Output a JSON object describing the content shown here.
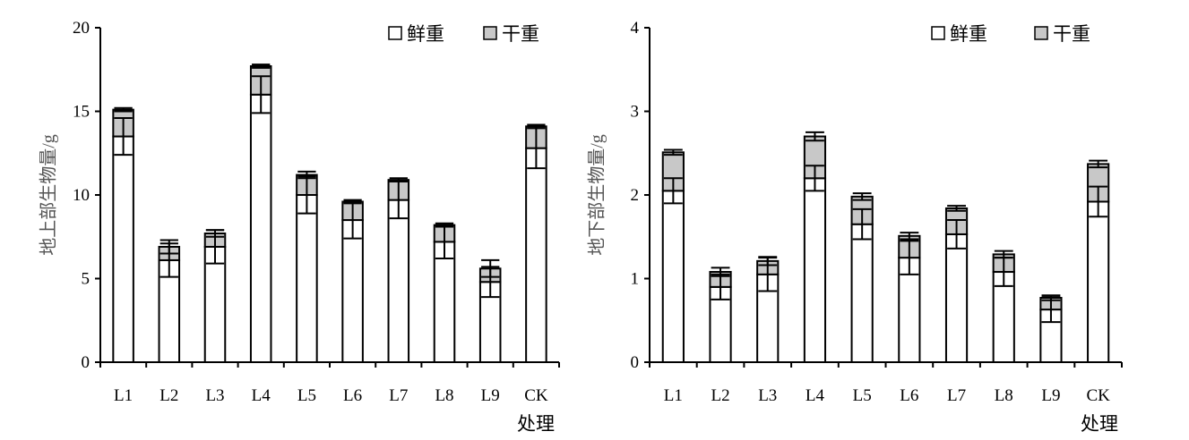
{
  "colors": {
    "fresh": "#ffffff",
    "dry": "#c8c8c8",
    "stroke": "#000000"
  },
  "chart_data": [
    {
      "type": "bar",
      "stacked": true,
      "ylabel": "地上部生物量/g",
      "xlabel": "处理",
      "ylim": [
        0,
        20
      ],
      "yticks": [
        "0",
        "5",
        "10",
        "15",
        "20"
      ],
      "categories": [
        "L1",
        "L2",
        "L3",
        "L4",
        "L5",
        "L6",
        "L7",
        "L8",
        "L9",
        "CK"
      ],
      "legend_position": "top-right",
      "series": [
        {
          "name": "鲜重",
          "values": [
            13.5,
            6.1,
            6.9,
            16.0,
            10.0,
            8.5,
            9.7,
            7.2,
            4.8,
            12.8
          ],
          "error": [
            1.1,
            1.0,
            1.0,
            1.1,
            1.1,
            1.1,
            1.1,
            1.0,
            0.9,
            1.2
          ]
        },
        {
          "name": "干重",
          "values": [
            1.6,
            0.8,
            0.8,
            1.7,
            1.2,
            1.1,
            1.2,
            1.0,
            0.8,
            1.3
          ],
          "error": [
            0.1,
            0.4,
            0.2,
            0.1,
            0.2,
            0.1,
            0.1,
            0.1,
            0.5,
            0.1
          ]
        }
      ]
    },
    {
      "type": "bar",
      "stacked": true,
      "ylabel": "地下部生物量/g",
      "xlabel": "处理",
      "ylim": [
        0,
        4
      ],
      "yticks": [
        "0",
        "1",
        "2",
        "3",
        "4"
      ],
      "categories": [
        "L1",
        "L2",
        "L3",
        "L4",
        "L5",
        "L6",
        "L7",
        "L8",
        "L9",
        "CK"
      ],
      "legend_position": "top-right",
      "series": [
        {
          "name": "鲜重",
          "values": [
            2.05,
            0.9,
            1.05,
            2.2,
            1.65,
            1.25,
            1.53,
            1.08,
            0.63,
            1.92
          ],
          "error": [
            0.15,
            0.15,
            0.2,
            0.15,
            0.18,
            0.2,
            0.17,
            0.17,
            0.15,
            0.18
          ]
        },
        {
          "name": "干重",
          "values": [
            0.46,
            0.18,
            0.16,
            0.5,
            0.33,
            0.26,
            0.31,
            0.21,
            0.14,
            0.45
          ],
          "error": [
            0.03,
            0.05,
            0.05,
            0.05,
            0.04,
            0.04,
            0.03,
            0.04,
            0.03,
            0.04
          ]
        }
      ]
    }
  ]
}
